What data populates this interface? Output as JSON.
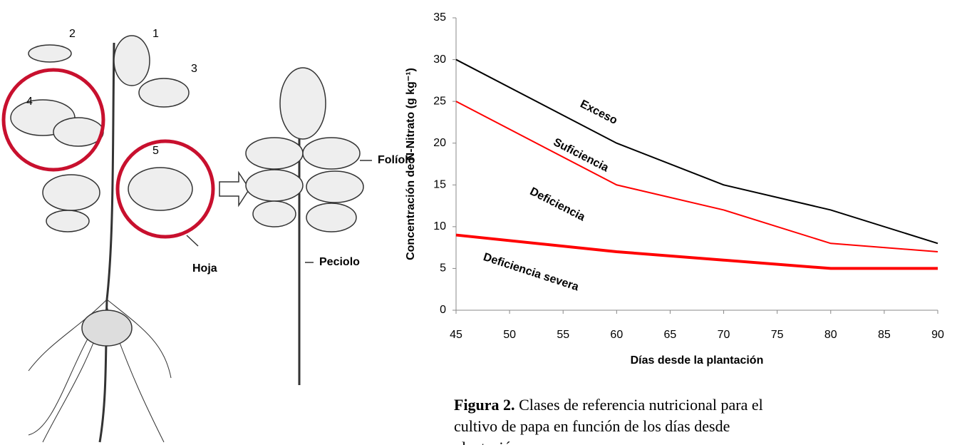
{
  "illustration": {
    "labels": [
      "1",
      "2",
      "3",
      "4",
      "5",
      "Hoja",
      "Folíolo",
      "Peciolo"
    ]
  },
  "chart_data": {
    "type": "line",
    "ylabel": "Concentración de N-Nitrato (g kg⁻¹)",
    "xlabel": "Días desde la plantación",
    "x": [
      45,
      60,
      70,
      80,
      90
    ],
    "series": [
      {
        "color": "#000000",
        "values": [
          30,
          20,
          15,
          12,
          8
        ]
      },
      {
        "color": "#ff0000",
        "values": [
          25,
          15,
          12,
          8,
          7
        ]
      },
      {
        "color": "#ff0000",
        "values": [
          9,
          7,
          6,
          5,
          5
        ]
      }
    ],
    "annotations": [
      "Exceso",
      "Suficiencia",
      "Deficiencia",
      "Deficiencia severa"
    ],
    "xlim": [
      45,
      90
    ],
    "xticks": [
      45,
      50,
      55,
      60,
      65,
      70,
      75,
      80,
      85,
      90
    ],
    "ylim": [
      0,
      35
    ],
    "yticks": [
      0,
      5,
      10,
      15,
      20,
      25,
      30,
      35
    ]
  },
  "caption": {
    "label": "Figura 2.",
    "text": "Clases de referencia nutricional para el cultivo de papa en función de los días desde plantación."
  }
}
